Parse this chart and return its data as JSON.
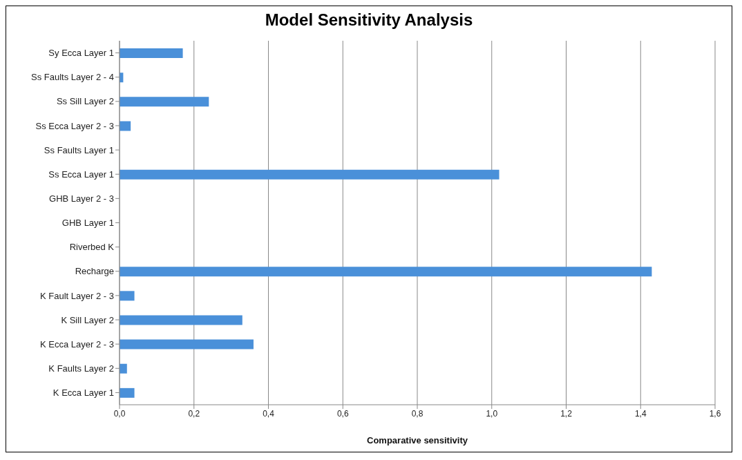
{
  "chart_data": {
    "type": "bar",
    "orientation": "horizontal",
    "title": "Model Sensitivity Analysis",
    "xlabel": "Comparative sensitivity",
    "categories": [
      "Sy Ecca Layer 1",
      "Ss Faults Layer 2 - 4",
      "Ss Sill Layer 2",
      "Ss Ecca Layer 2 - 3",
      "Ss Faults Layer 1",
      "Ss Ecca Layer 1",
      "GHB Layer 2 - 3",
      "GHB Layer 1",
      "Riverbed K",
      "Recharge",
      "K Fault Layer 2 - 3",
      "K Sill Layer 2",
      "K Ecca Layer 2 - 3",
      "K Faults Layer 2",
      "K Ecca Layer 1"
    ],
    "values": [
      0.17,
      0.01,
      0.24,
      0.03,
      0,
      1.02,
      0,
      0,
      0,
      1.43,
      0.04,
      0.33,
      0.36,
      0.02,
      0.04
    ],
    "color": "#4a90d9",
    "xlim": [
      0,
      1.6
    ],
    "xticks": [
      {
        "value": 0,
        "label": "0,0"
      },
      {
        "value": 0.2,
        "label": "0,2"
      },
      {
        "value": 0.4,
        "label": "0,4"
      },
      {
        "value": 0.6,
        "label": "0,6"
      },
      {
        "value": 0.8,
        "label": "0,8"
      },
      {
        "value": 1.0,
        "label": "1,0"
      },
      {
        "value": 1.2,
        "label": "1,2"
      },
      {
        "value": 1.4,
        "label": "1,4"
      },
      {
        "value": 1.6,
        "label": "1,6"
      }
    ],
    "grid": "x",
    "legend": false
  }
}
